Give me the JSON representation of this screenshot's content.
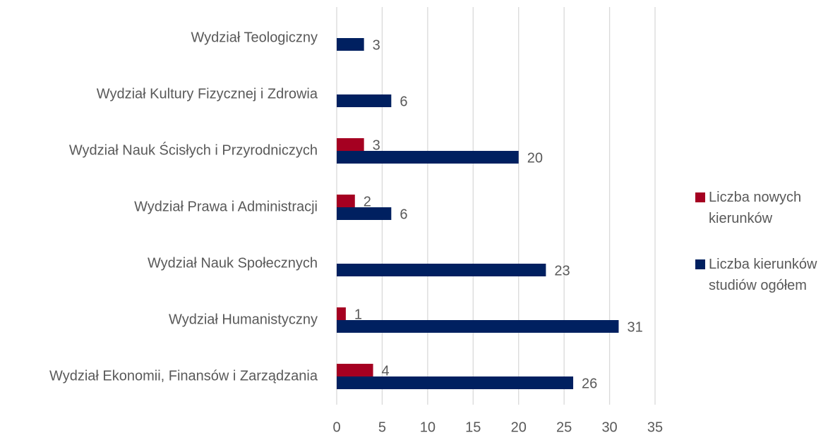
{
  "chart_data": {
    "type": "bar",
    "orientation": "horizontal",
    "categories": [
      "Wydział Ekonomii, Finansów i Zarządzania",
      "Wydział Humanistyczny",
      "Wydział Nauk Społecznych",
      "Wydział Prawa i Administracji",
      "Wydział Nauk Ścisłych i Przyrodniczych",
      "Wydział Kultury Fizycznej i Zdrowia",
      "Wydział Teologiczny"
    ],
    "series": [
      {
        "name": "Liczba nowych kierunków",
        "color": "#a50021",
        "values": [
          4,
          1,
          null,
          2,
          3,
          null,
          null
        ]
      },
      {
        "name": "Liczba kierunków studiów ogółem",
        "color": "#002060",
        "values": [
          26,
          31,
          23,
          6,
          20,
          6,
          3
        ]
      }
    ],
    "xlim": [
      0,
      35
    ],
    "xticks": [
      0,
      5,
      10,
      15,
      20,
      25,
      30,
      35
    ],
    "grid": true,
    "legend": "right"
  }
}
